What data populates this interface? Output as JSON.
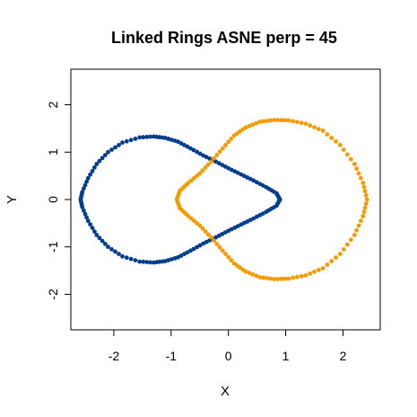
{
  "chart_data": {
    "type": "scatter",
    "title": "Linked Rings ASNE perp = 45",
    "xlabel": "X",
    "ylabel": "Y",
    "xlim": [
      -2.75,
      2.65
    ],
    "ylim": [
      -2.75,
      2.75
    ],
    "xticks": [
      -2,
      -1,
      0,
      1,
      2
    ],
    "yticks": [
      -2,
      -1,
      0,
      1,
      2
    ],
    "xtick_labels": [
      "-2",
      "-1",
      "0",
      "1",
      "2"
    ],
    "ytick_labels": [
      "-2",
      "-1",
      "0",
      "1",
      "2"
    ],
    "grid": false,
    "legend": "none",
    "series": [
      {
        "color": "#003d8f",
        "x": [
          0.9,
          0.84,
          0.66,
          0.44,
          0.22,
          0.0,
          -0.22,
          -0.44,
          -0.66,
          -0.88,
          -1.1,
          -1.3,
          -1.55,
          -1.85,
          -2.1,
          -2.3,
          -2.45,
          -2.55,
          -2.58,
          -2.55,
          -2.45,
          -2.3,
          -2.1,
          -1.85,
          -1.55,
          -1.3,
          -1.1,
          -0.88,
          -0.66,
          -0.44,
          -0.22,
          0.0,
          0.22,
          0.44,
          0.66,
          0.84
        ],
        "y": [
          0.0,
          0.13,
          0.26,
          0.4,
          0.53,
          0.66,
          0.8,
          0.93,
          1.08,
          1.22,
          1.3,
          1.33,
          1.31,
          1.2,
          1.0,
          0.75,
          0.45,
          0.16,
          0.0,
          -0.16,
          -0.45,
          -0.75,
          -1.0,
          -1.2,
          -1.31,
          -1.33,
          -1.3,
          -1.22,
          -1.08,
          -0.93,
          -0.8,
          -0.66,
          -0.53,
          -0.4,
          -0.26,
          -0.13
        ]
      },
      {
        "color": "#f59b00",
        "x": [
          -0.9,
          -0.85,
          -0.7,
          -0.5,
          -0.3,
          -0.1,
          0.1,
          0.3,
          0.55,
          0.8,
          1.05,
          1.35,
          1.65,
          1.95,
          2.2,
          2.35,
          2.42,
          2.35,
          2.2,
          1.95,
          1.65,
          1.35,
          1.05,
          0.8,
          0.55,
          0.3,
          0.1,
          -0.1,
          -0.3,
          -0.5,
          -0.7,
          -0.85
        ],
        "y": [
          0.0,
          0.18,
          0.35,
          0.55,
          0.8,
          1.08,
          1.35,
          1.52,
          1.64,
          1.68,
          1.67,
          1.6,
          1.45,
          1.15,
          0.75,
          0.35,
          0.0,
          -0.35,
          -0.75,
          -1.15,
          -1.45,
          -1.6,
          -1.67,
          -1.68,
          -1.64,
          -1.52,
          -1.35,
          -1.08,
          -0.8,
          -0.55,
          -0.35,
          -0.18
        ]
      }
    ]
  }
}
